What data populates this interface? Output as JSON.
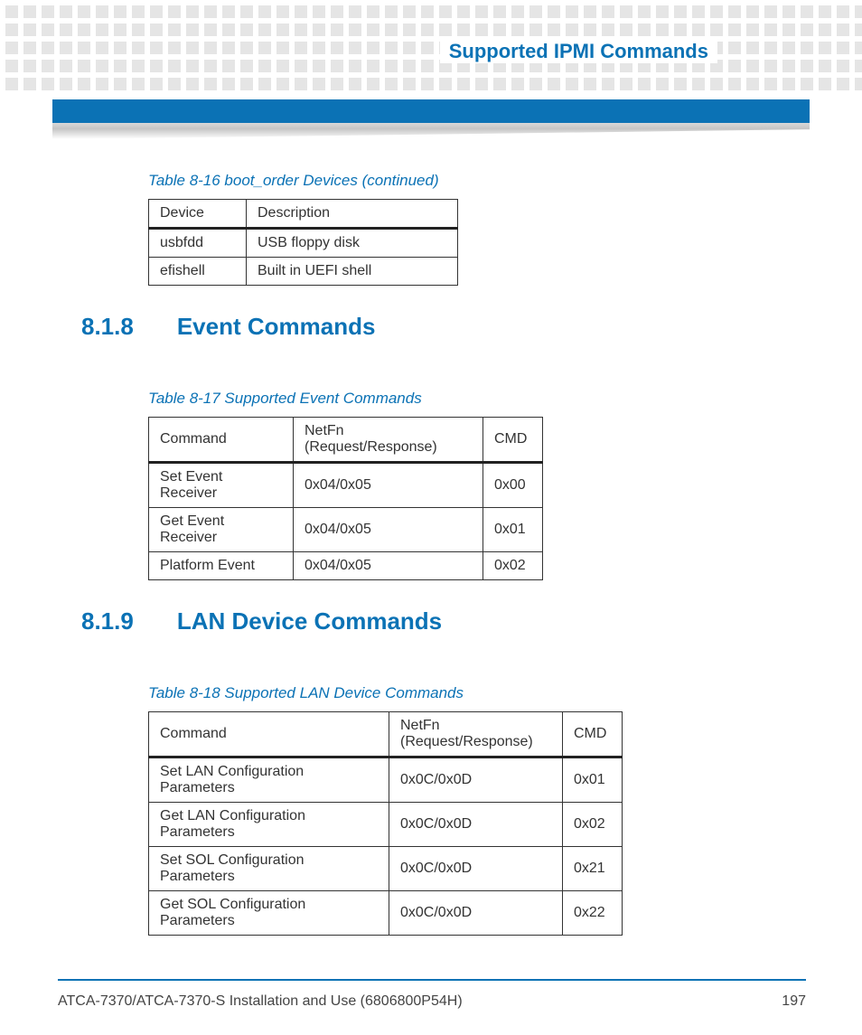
{
  "header": {
    "chapter_title": "Supported IPMI Commands"
  },
  "table1": {
    "caption": "Table 8-16 boot_order Devices (continued)",
    "columns": [
      "Device",
      "Description"
    ],
    "rows": [
      [
        "usbfdd",
        "USB floppy disk"
      ],
      [
        "efishell",
        "Built in UEFI shell"
      ]
    ]
  },
  "section1": {
    "number": "8.1.8",
    "title": "Event Commands"
  },
  "table2": {
    "caption": "Table 8-17 Supported Event Commands",
    "columns": [
      "Command",
      "NetFn (Request/Response)",
      "CMD"
    ],
    "rows": [
      [
        "Set Event Receiver",
        "0x04/0x05",
        "0x00"
      ],
      [
        "Get Event Receiver",
        "0x04/0x05",
        "0x01"
      ],
      [
        "Platform Event",
        "0x04/0x05",
        "0x02"
      ]
    ]
  },
  "section2": {
    "number": "8.1.9",
    "title": "LAN Device Commands"
  },
  "table3": {
    "caption": "Table 8-18 Supported LAN Device Commands",
    "columns": [
      "Command",
      "NetFn (Request/Response)",
      "CMD"
    ],
    "rows": [
      [
        "Set LAN Configuration Parameters",
        "0x0C/0x0D",
        "0x01"
      ],
      [
        "Get LAN Configuration Parameters",
        "0x0C/0x0D",
        "0x02"
      ],
      [
        "Set SOL Configuration Parameters",
        "0x0C/0x0D",
        "0x21"
      ],
      [
        "Get SOL Configuration Parameters",
        "0x0C/0x0D",
        "0x22"
      ]
    ]
  },
  "footer": {
    "doc_title": "ATCA-7370/ATCA-7370-S Installation and Use (6806800P54H)",
    "page_number": "197"
  },
  "colors": {
    "brand_blue": "#0b72b5",
    "dot_gray": "#e5e5e5",
    "text_dark": "#333333"
  }
}
